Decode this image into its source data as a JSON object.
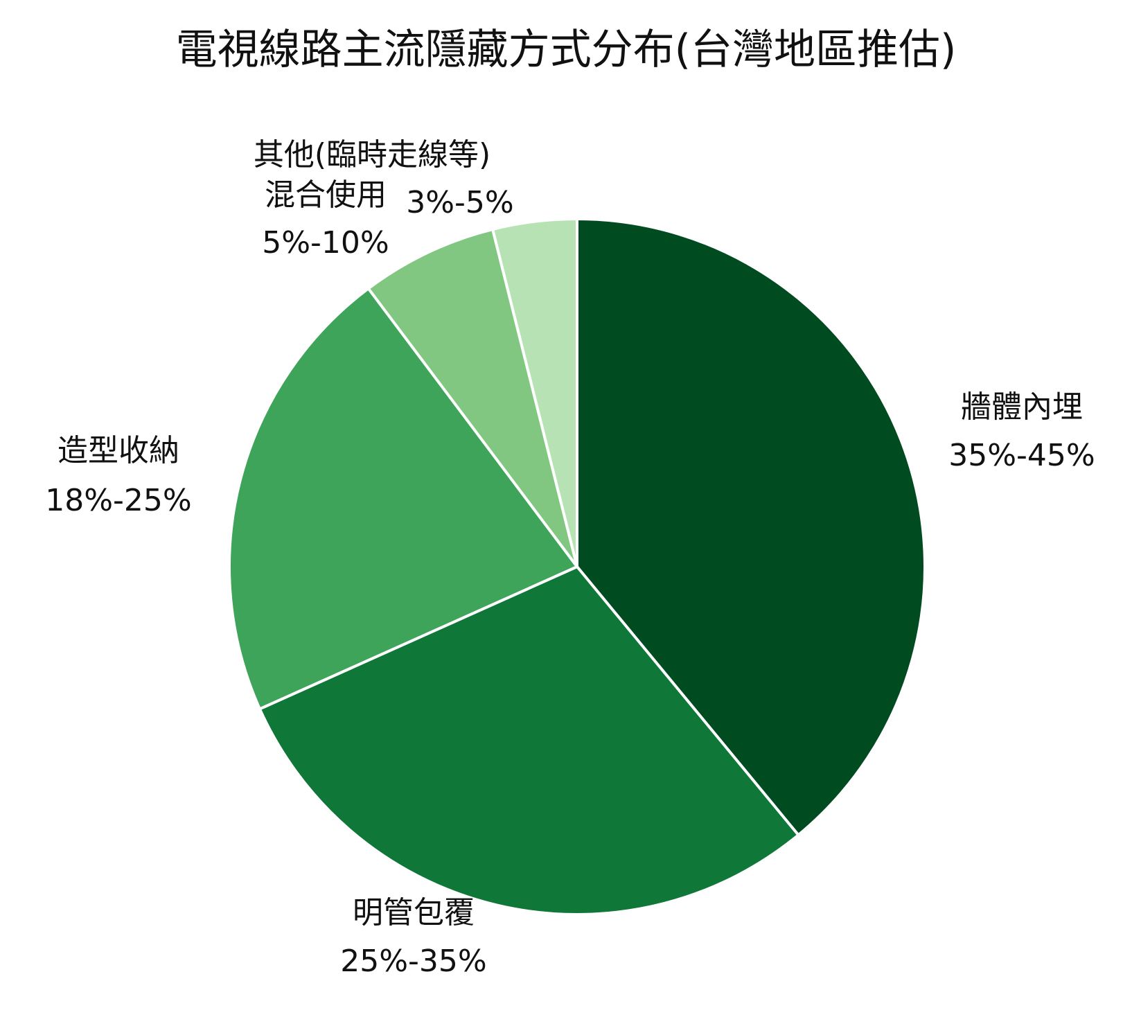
{
  "chart_data": {
    "type": "pie",
    "title": "電視線路主流隱藏方式分布(台灣地區推估)",
    "start_angle_deg": 90,
    "direction": "clockwise",
    "slices": [
      {
        "label": "牆體內埋",
        "range_text": "35%-45%",
        "value": 40,
        "color": "#004b1f"
      },
      {
        "label": "明管包覆",
        "range_text": "25%-35%",
        "value": 30,
        "color": "#0f7737"
      },
      {
        "label": "造型收納",
        "range_text": "18%-25%",
        "value": 22,
        "color": "#3ea45a"
      },
      {
        "label": "混合使用",
        "range_text": "5%-10%",
        "value": 6.5,
        "color": "#81c782"
      },
      {
        "label": "其他(臨時走線等)",
        "range_text": "3%-5%",
        "value": 4,
        "color": "#b7e2b3"
      }
    ]
  }
}
